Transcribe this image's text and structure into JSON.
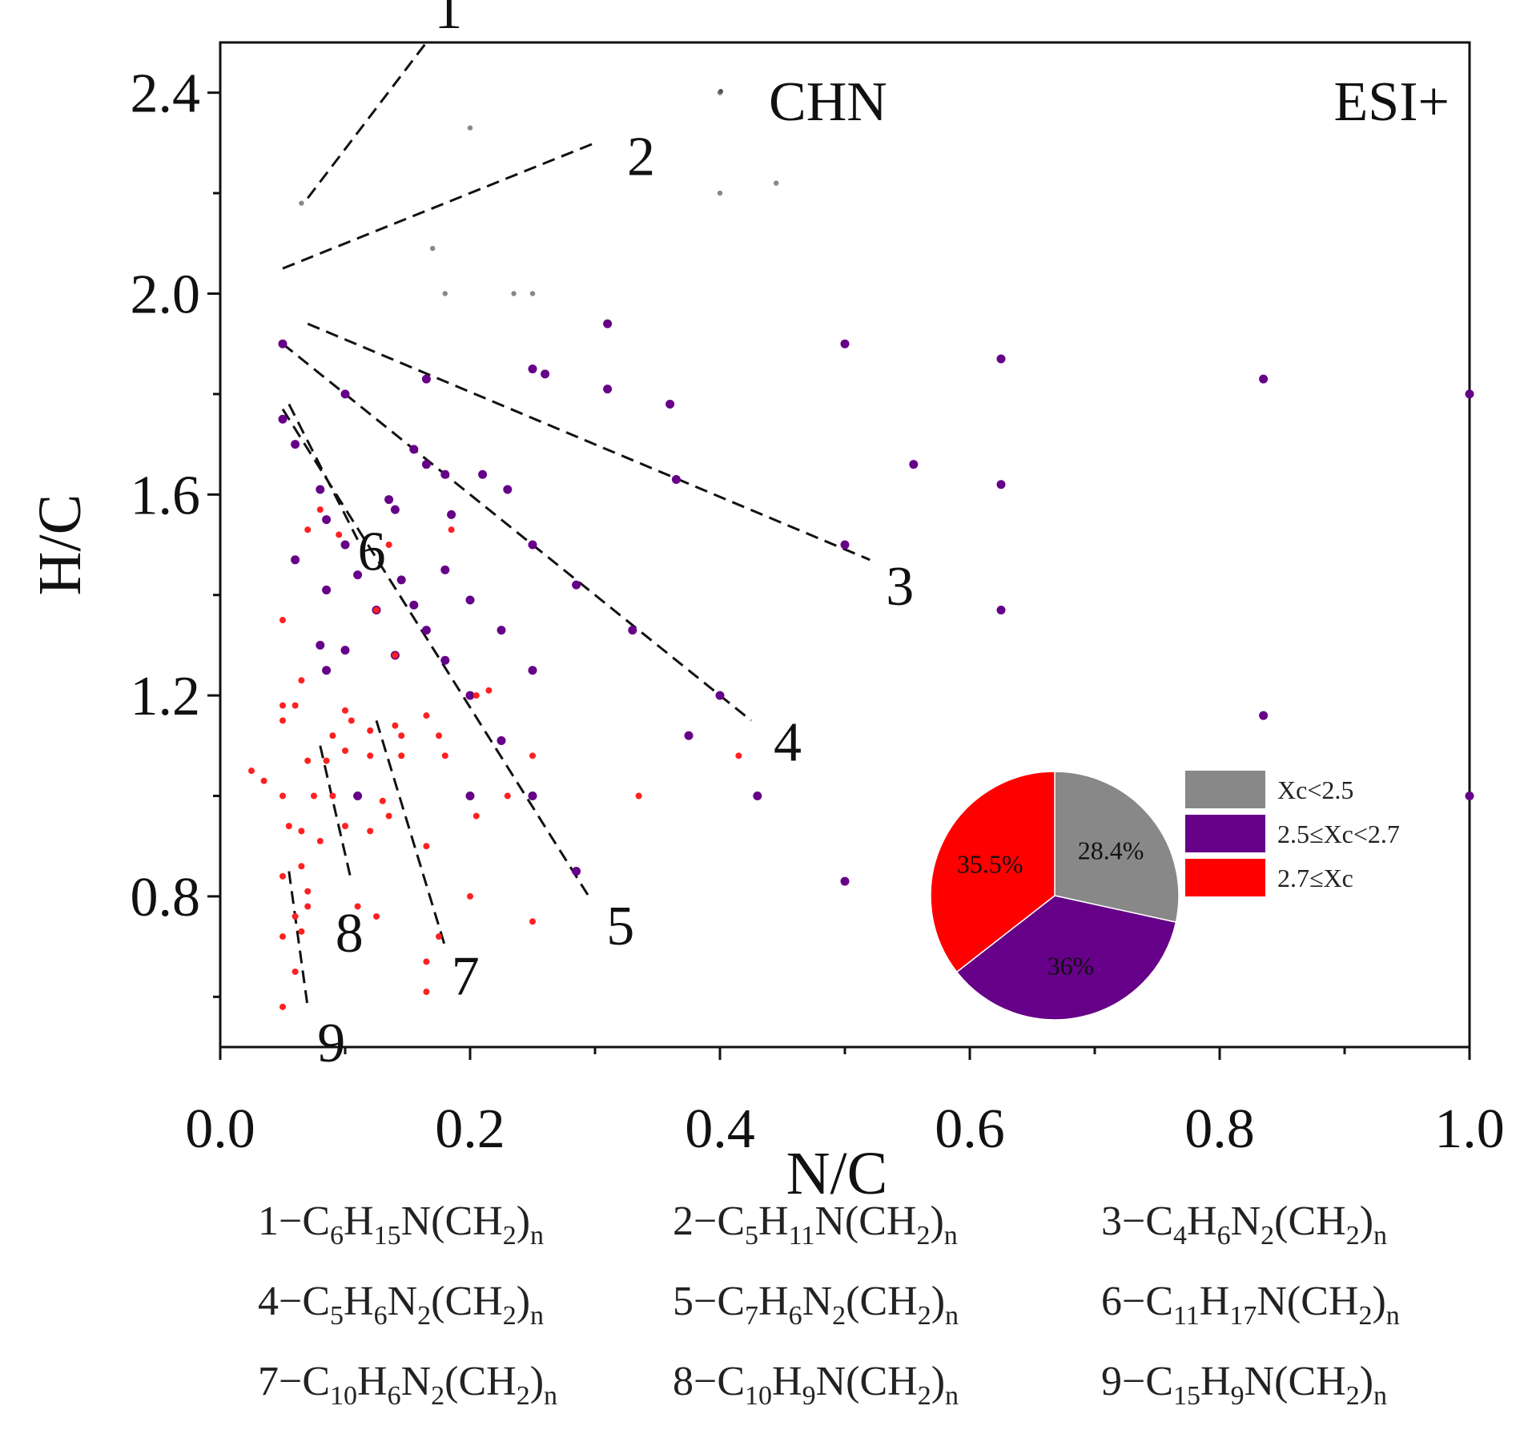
{
  "chart_data": {
    "type": "scatter",
    "xlabel": "N/C",
    "ylabel": "H/C",
    "xlim": [
      0,
      1.0
    ],
    "ylim": [
      0.5,
      2.5
    ],
    "xticks": [
      "0.0",
      "0.2",
      "0.4",
      "0.6",
      "0.8",
      "1.0"
    ],
    "yticks": [
      "0.8",
      "1.2",
      "1.6",
      "2.0",
      "2.4"
    ],
    "corner_labels": {
      "left": "CHN",
      "right": "ESI+"
    },
    "series": [
      {
        "name": "Xc<2.5",
        "color": "#888888",
        "points": [
          [
            0.065,
            2.18
          ],
          [
            0.2,
            2.33
          ],
          [
            0.4,
            2.4
          ],
          [
            0.4,
            2.2
          ],
          [
            0.445,
            2.22
          ],
          [
            0.17,
            2.09
          ],
          [
            0.18,
            2.0
          ],
          [
            0.235,
            2.0
          ],
          [
            0.25,
            2.0
          ]
        ]
      },
      {
        "name": "2.5≤Xc<2.7",
        "color": "#660088",
        "points": [
          [
            0.05,
            1.9
          ],
          [
            0.31,
            1.94
          ],
          [
            0.25,
            1.85
          ],
          [
            0.26,
            1.84
          ],
          [
            0.165,
            1.83
          ],
          [
            0.31,
            1.81
          ],
          [
            0.1,
            1.8
          ],
          [
            0.36,
            1.78
          ],
          [
            0.5,
            1.9
          ],
          [
            0.625,
            1.87
          ],
          [
            0.835,
            1.83
          ],
          [
            1.0,
            1.8
          ],
          [
            0.05,
            1.75
          ],
          [
            0.06,
            1.7
          ],
          [
            0.155,
            1.69
          ],
          [
            0.165,
            1.66
          ],
          [
            0.555,
            1.66
          ],
          [
            0.18,
            1.64
          ],
          [
            0.21,
            1.64
          ],
          [
            0.365,
            1.63
          ],
          [
            0.23,
            1.61
          ],
          [
            0.625,
            1.62
          ],
          [
            0.08,
            1.61
          ],
          [
            0.135,
            1.59
          ],
          [
            0.14,
            1.57
          ],
          [
            0.185,
            1.56
          ],
          [
            0.085,
            1.55
          ],
          [
            0.1,
            1.5
          ],
          [
            0.25,
            1.5
          ],
          [
            0.5,
            1.5
          ],
          [
            0.06,
            1.47
          ],
          [
            0.18,
            1.45
          ],
          [
            0.11,
            1.44
          ],
          [
            0.145,
            1.43
          ],
          [
            0.085,
            1.41
          ],
          [
            0.285,
            1.42
          ],
          [
            0.2,
            1.39
          ],
          [
            0.155,
            1.38
          ],
          [
            0.125,
            1.37
          ],
          [
            0.625,
            1.37
          ],
          [
            0.165,
            1.33
          ],
          [
            0.225,
            1.33
          ],
          [
            0.33,
            1.33
          ],
          [
            0.08,
            1.3
          ],
          [
            0.1,
            1.29
          ],
          [
            0.14,
            1.28
          ],
          [
            0.18,
            1.27
          ],
          [
            0.25,
            1.25
          ],
          [
            0.085,
            1.25
          ],
          [
            0.2,
            1.2
          ],
          [
            0.4,
            1.2
          ],
          [
            0.835,
            1.16
          ],
          [
            0.375,
            1.12
          ],
          [
            0.225,
            1.11
          ],
          [
            0.11,
            1.0
          ],
          [
            0.2,
            1.0
          ],
          [
            0.25,
            1.0
          ],
          [
            0.43,
            1.0
          ],
          [
            1.0,
            1.0
          ],
          [
            0.285,
            0.85
          ],
          [
            0.5,
            0.83
          ]
        ]
      },
      {
        "name": "2.7≤Xc",
        "color": "#ff2020",
        "points": [
          [
            0.08,
            1.57
          ],
          [
            0.07,
            1.53
          ],
          [
            0.095,
            1.52
          ],
          [
            0.135,
            1.5
          ],
          [
            0.185,
            1.53
          ],
          [
            0.05,
            1.35
          ],
          [
            0.125,
            1.37
          ],
          [
            0.14,
            1.28
          ],
          [
            0.065,
            1.23
          ],
          [
            0.06,
            1.18
          ],
          [
            0.05,
            1.18
          ],
          [
            0.05,
            1.15
          ],
          [
            0.1,
            1.17
          ],
          [
            0.105,
            1.15
          ],
          [
            0.12,
            1.13
          ],
          [
            0.09,
            1.12
          ],
          [
            0.14,
            1.14
          ],
          [
            0.145,
            1.12
          ],
          [
            0.165,
            1.16
          ],
          [
            0.175,
            1.12
          ],
          [
            0.205,
            1.2
          ],
          [
            0.215,
            1.21
          ],
          [
            0.1,
            1.09
          ],
          [
            0.12,
            1.08
          ],
          [
            0.07,
            1.07
          ],
          [
            0.085,
            1.07
          ],
          [
            0.025,
            1.05
          ],
          [
            0.035,
            1.03
          ],
          [
            0.145,
            1.08
          ],
          [
            0.18,
            1.08
          ],
          [
            0.25,
            1.08
          ],
          [
            0.415,
            1.08
          ],
          [
            0.05,
            1.0
          ],
          [
            0.075,
            1.0
          ],
          [
            0.09,
            1.0
          ],
          [
            0.13,
            0.99
          ],
          [
            0.205,
            0.96
          ],
          [
            0.23,
            1.0
          ],
          [
            0.335,
            1.0
          ],
          [
            0.055,
            0.94
          ],
          [
            0.065,
            0.93
          ],
          [
            0.1,
            0.94
          ],
          [
            0.12,
            0.93
          ],
          [
            0.135,
            0.96
          ],
          [
            0.165,
            0.9
          ],
          [
            0.08,
            0.91
          ],
          [
            0.065,
            0.86
          ],
          [
            0.05,
            0.84
          ],
          [
            0.07,
            0.81
          ],
          [
            0.07,
            0.78
          ],
          [
            0.11,
            0.78
          ],
          [
            0.06,
            0.76
          ],
          [
            0.125,
            0.76
          ],
          [
            0.065,
            0.73
          ],
          [
            0.05,
            0.72
          ],
          [
            0.2,
            0.8
          ],
          [
            0.25,
            0.75
          ],
          [
            0.165,
            0.67
          ],
          [
            0.175,
            0.72
          ],
          [
            0.06,
            0.65
          ],
          [
            0.165,
            0.61
          ],
          [
            0.05,
            0.58
          ]
        ]
      }
    ],
    "trend_lines": [
      {
        "label": "1",
        "from": [
          0.07,
          2.19
        ],
        "to": [
          0.165,
          2.5
        ]
      },
      {
        "label": "2",
        "from": [
          0.05,
          2.05
        ],
        "to": [
          0.3,
          2.3
        ]
      },
      {
        "label": "3",
        "from": [
          0.07,
          1.94
        ],
        "to": [
          0.52,
          1.47
        ]
      },
      {
        "label": "4",
        "from": [
          0.05,
          1.9
        ],
        "to": [
          0.425,
          1.15
        ]
      },
      {
        "label": "5",
        "from": [
          0.05,
          1.77
        ],
        "to": [
          0.295,
          0.8
        ]
      },
      {
        "label": "6",
        "from": [
          0.055,
          1.78
        ],
        "to": [
          0.11,
          1.51
        ]
      },
      {
        "label": "7",
        "from": [
          0.125,
          1.15
        ],
        "to": [
          0.18,
          0.7
        ]
      },
      {
        "label": "8",
        "from": [
          0.08,
          1.1
        ],
        "to": [
          0.105,
          0.83
        ]
      },
      {
        "label": "9",
        "from": [
          0.055,
          0.85
        ],
        "to": [
          0.07,
          0.58
        ]
      }
    ],
    "pie": {
      "slices": [
        {
          "name": "Xc<2.5",
          "label": "28.4%",
          "value": 28.4,
          "color": "#888888"
        },
        {
          "name": "2.5≤Xc<2.7",
          "label": "36%",
          "value": 36.0,
          "color": "#660088"
        },
        {
          "name": "2.7≤Xc",
          "label": "35.5%",
          "value": 35.5,
          "color": "#ff0000"
        }
      ]
    }
  },
  "formulas": [
    [
      {
        "num": "1",
        "parts": [
          [
            "C",
            ""
          ],
          [
            "6",
            "sub"
          ],
          [
            "H",
            ""
          ],
          [
            "15",
            "sub"
          ],
          [
            "N(CH",
            ""
          ],
          [
            "2",
            "sub"
          ],
          [
            ")",
            ""
          ],
          [
            "n",
            "sub"
          ]
        ]
      },
      {
        "num": "2",
        "parts": [
          [
            "C",
            ""
          ],
          [
            "5",
            "sub"
          ],
          [
            "H",
            ""
          ],
          [
            "11",
            "sub"
          ],
          [
            "N(CH",
            ""
          ],
          [
            "2",
            "sub"
          ],
          [
            ")",
            ""
          ],
          [
            "n",
            "sub"
          ]
        ]
      },
      {
        "num": "3",
        "parts": [
          [
            "C",
            ""
          ],
          [
            "4",
            "sub"
          ],
          [
            "H",
            ""
          ],
          [
            "6",
            "sub"
          ],
          [
            "N",
            ""
          ],
          [
            "2",
            "sub"
          ],
          [
            "(CH",
            ""
          ],
          [
            "2",
            "sub"
          ],
          [
            ")",
            ""
          ],
          [
            "n",
            "sub"
          ]
        ]
      }
    ],
    [
      {
        "num": "4",
        "parts": [
          [
            "C",
            ""
          ],
          [
            "5",
            "sub"
          ],
          [
            "H",
            ""
          ],
          [
            "6",
            "sub"
          ],
          [
            "N",
            ""
          ],
          [
            "2",
            "sub"
          ],
          [
            "(CH",
            ""
          ],
          [
            "2",
            "sub"
          ],
          [
            ")",
            ""
          ],
          [
            "n",
            "sub"
          ]
        ]
      },
      {
        "num": "5",
        "parts": [
          [
            "C",
            ""
          ],
          [
            "7",
            "sub"
          ],
          [
            "H",
            ""
          ],
          [
            "6",
            "sub"
          ],
          [
            "N",
            ""
          ],
          [
            "2",
            "sub"
          ],
          [
            "(CH",
            ""
          ],
          [
            "2",
            "sub"
          ],
          [
            ")",
            ""
          ],
          [
            "n",
            "sub"
          ]
        ]
      },
      {
        "num": "6",
        "parts": [
          [
            "C",
            ""
          ],
          [
            "11",
            "sub"
          ],
          [
            "H",
            ""
          ],
          [
            "17",
            "sub"
          ],
          [
            "N(CH",
            ""
          ],
          [
            "2",
            "sub"
          ],
          [
            ")",
            ""
          ],
          [
            "n",
            "sub"
          ]
        ]
      }
    ],
    [
      {
        "num": "7",
        "parts": [
          [
            "C",
            ""
          ],
          [
            "10",
            "sub"
          ],
          [
            "H",
            ""
          ],
          [
            "6",
            "sub"
          ],
          [
            "N",
            ""
          ],
          [
            "2",
            "sub"
          ],
          [
            "(CH",
            ""
          ],
          [
            "2",
            "sub"
          ],
          [
            ")",
            ""
          ],
          [
            "n",
            "sub"
          ]
        ]
      },
      {
        "num": "8",
        "parts": [
          [
            "C",
            ""
          ],
          [
            "10",
            "sub"
          ],
          [
            "H",
            ""
          ],
          [
            "9",
            "sub"
          ],
          [
            "N(CH",
            ""
          ],
          [
            "2",
            "sub"
          ],
          [
            ")",
            ""
          ],
          [
            "n",
            "sub"
          ]
        ]
      },
      {
        "num": "9",
        "parts": [
          [
            "C",
            ""
          ],
          [
            "15",
            "sub"
          ],
          [
            "H",
            ""
          ],
          [
            "9",
            "sub"
          ],
          [
            "N(CH",
            ""
          ],
          [
            "2",
            "sub"
          ],
          [
            ")",
            ""
          ],
          [
            "n",
            "sub"
          ]
        ]
      }
    ]
  ]
}
